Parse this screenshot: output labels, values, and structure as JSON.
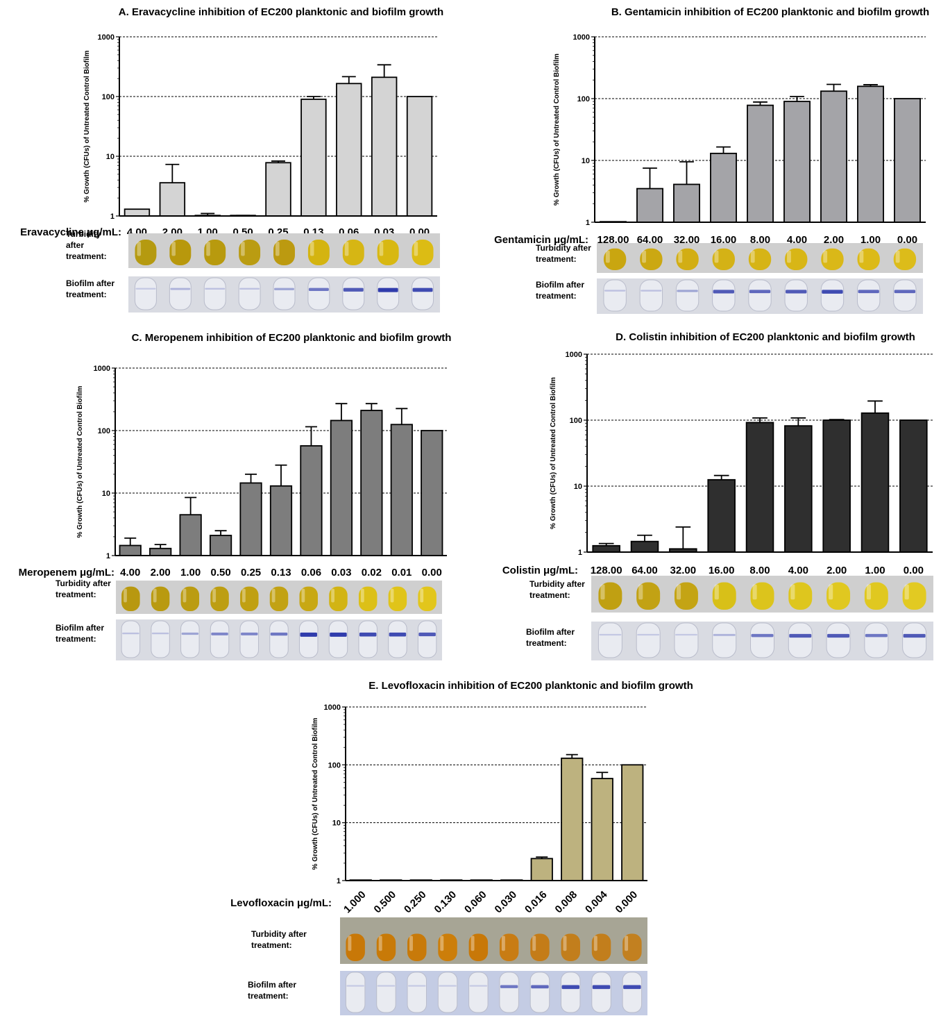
{
  "chart_data": [
    {
      "type": "bar",
      "title": "A.  Eravacycline inhibition of EC200 planktonic and biofilm growth",
      "ylabel": "% Growth (CFUs) of Untreated Control Biofilm",
      "yscale": "log",
      "ylim": [
        1,
        1000
      ],
      "yticks": [
        "1",
        "10",
        "100",
        "1000"
      ],
      "grid": "dashed at 10, 100, 1000",
      "concentration_label": "Eravacycline μg/mL:",
      "categories": [
        "4.00",
        "2.00",
        "1.00",
        "0.50",
        "0.25",
        "0.13",
        "0.06",
        "0.03",
        "0.00"
      ],
      "values": [
        1.3,
        3.6,
        1.02,
        1.01,
        7.8,
        90,
        165,
        210,
        100
      ],
      "errors": [
        1.3,
        7.3,
        1.1,
        1.02,
        8.3,
        100,
        215,
        340,
        100
      ],
      "bar_color": "#d4d4d4",
      "row_labels": {
        "turbidity": "Turbidity\nafter\ntreatment:",
        "biofilm": "Biofilm after\ntreatment:"
      }
    },
    {
      "type": "bar",
      "title": "B.  Gentamicin inhibition of EC200 planktonic and biofilm growth",
      "ylabel": "% Growth (CFUs) of Untreated Control Biofilm",
      "yscale": "log",
      "ylim": [
        1,
        1000
      ],
      "yticks": [
        "1",
        "10",
        "100",
        "1000"
      ],
      "grid": "dashed at 10, 100, 1000",
      "concentration_label": "Gentamicin μg/mL:",
      "categories": [
        "128.00",
        "64.00",
        "32.00",
        "16.00",
        "8.00",
        "4.00",
        "2.00",
        "1.00",
        "0.00"
      ],
      "values": [
        1.0,
        3.5,
        4.1,
        13,
        78,
        90,
        132,
        158,
        100
      ],
      "errors": [
        1.0,
        7.5,
        9.5,
        16.5,
        88,
        108,
        170,
        168,
        100
      ],
      "bar_color": "#a4a4a8",
      "row_labels": {
        "turbidity": "Turbidity after\ntreatment:",
        "biofilm": "Biofilm after\ntreatment:"
      }
    },
    {
      "type": "bar",
      "title": "C.  Meropenem inhibition of EC200 planktonic and biofilm growth",
      "ylabel": "% Growth (CFUs) of Untreated Control Biofilm",
      "yscale": "log",
      "ylim": [
        1,
        1000
      ],
      "yticks": [
        "1",
        "10",
        "100",
        "1000"
      ],
      "grid": "dashed at 10, 100, 1000",
      "concentration_label": "Meropenem μg/mL:",
      "categories": [
        "4.00",
        "2.00",
        "1.00",
        "0.50",
        "0.25",
        "0.13",
        "0.06",
        "0.03",
        "0.02",
        "0.01",
        "0.00"
      ],
      "values": [
        1.45,
        1.3,
        4.5,
        2.1,
        14.5,
        13,
        57,
        145,
        210,
        125,
        100
      ],
      "errors": [
        1.9,
        1.5,
        8.5,
        2.5,
        20,
        28,
        115,
        270,
        270,
        225,
        100
      ],
      "bar_color": "#7d7d7d",
      "row_labels": {
        "turbidity": "Turbidity after\ntreatment:",
        "biofilm": "Biofilm after\ntreatment:"
      }
    },
    {
      "type": "bar",
      "title": "D.  Colistin inhibition of EC200 planktonic and biofilm growth",
      "ylabel": "% Growth (CFUs) of Untreated Control Biofilm",
      "yscale": "log",
      "ylim": [
        1,
        1000
      ],
      "yticks": [
        "1",
        "10",
        "100",
        "1000"
      ],
      "grid": "dashed at 10, 100, 1000",
      "concentration_label": "Colistin μg/mL:",
      "categories": [
        "128.00",
        "64.00",
        "32.00",
        "16.00",
        "8.00",
        "4.00",
        "2.00",
        "1.00",
        "0.00"
      ],
      "values": [
        1.25,
        1.45,
        1.12,
        12.5,
        92,
        82,
        100,
        128,
        100
      ],
      "errors": [
        1.35,
        1.8,
        2.4,
        14.5,
        108,
        108,
        102,
        195,
        100
      ],
      "bar_color": "#2f2f2f",
      "row_labels": {
        "turbidity": "Turbidity after\ntreatment:",
        "biofilm": "Biofilm after\ntreatment:"
      }
    },
    {
      "type": "bar",
      "title": "E.  Levofloxacin inhibition of EC200 planktonic and biofilm growth",
      "ylabel": "% Growth (CFUs) of Untreated Control Biofilm",
      "yscale": "log",
      "ylim": [
        1,
        1000
      ],
      "yticks": [
        "1",
        "10",
        "100",
        "1000"
      ],
      "grid": "dashed at 10, 100, 1000",
      "concentration_label": "Levofloxacin μg/mL:",
      "categories": [
        "1.000",
        "0.500",
        "0.250",
        "0.130",
        "0.060",
        "0.030",
        "0.016",
        "0.008",
        "0.004",
        "0.000"
      ],
      "values": [
        1.0,
        1.0,
        1.0,
        1.0,
        1.0,
        1.0,
        2.4,
        130,
        58,
        100
      ],
      "errors": [
        1.0,
        1.0,
        1.0,
        1.0,
        1.0,
        1.0,
        2.55,
        150,
        74,
        100
      ],
      "bar_color": "#bdb27f",
      "row_labels": {
        "turbidity": "Turbidity after\ntreatment:",
        "biofilm": "Biofilm after\ntreatment:"
      }
    }
  ]
}
